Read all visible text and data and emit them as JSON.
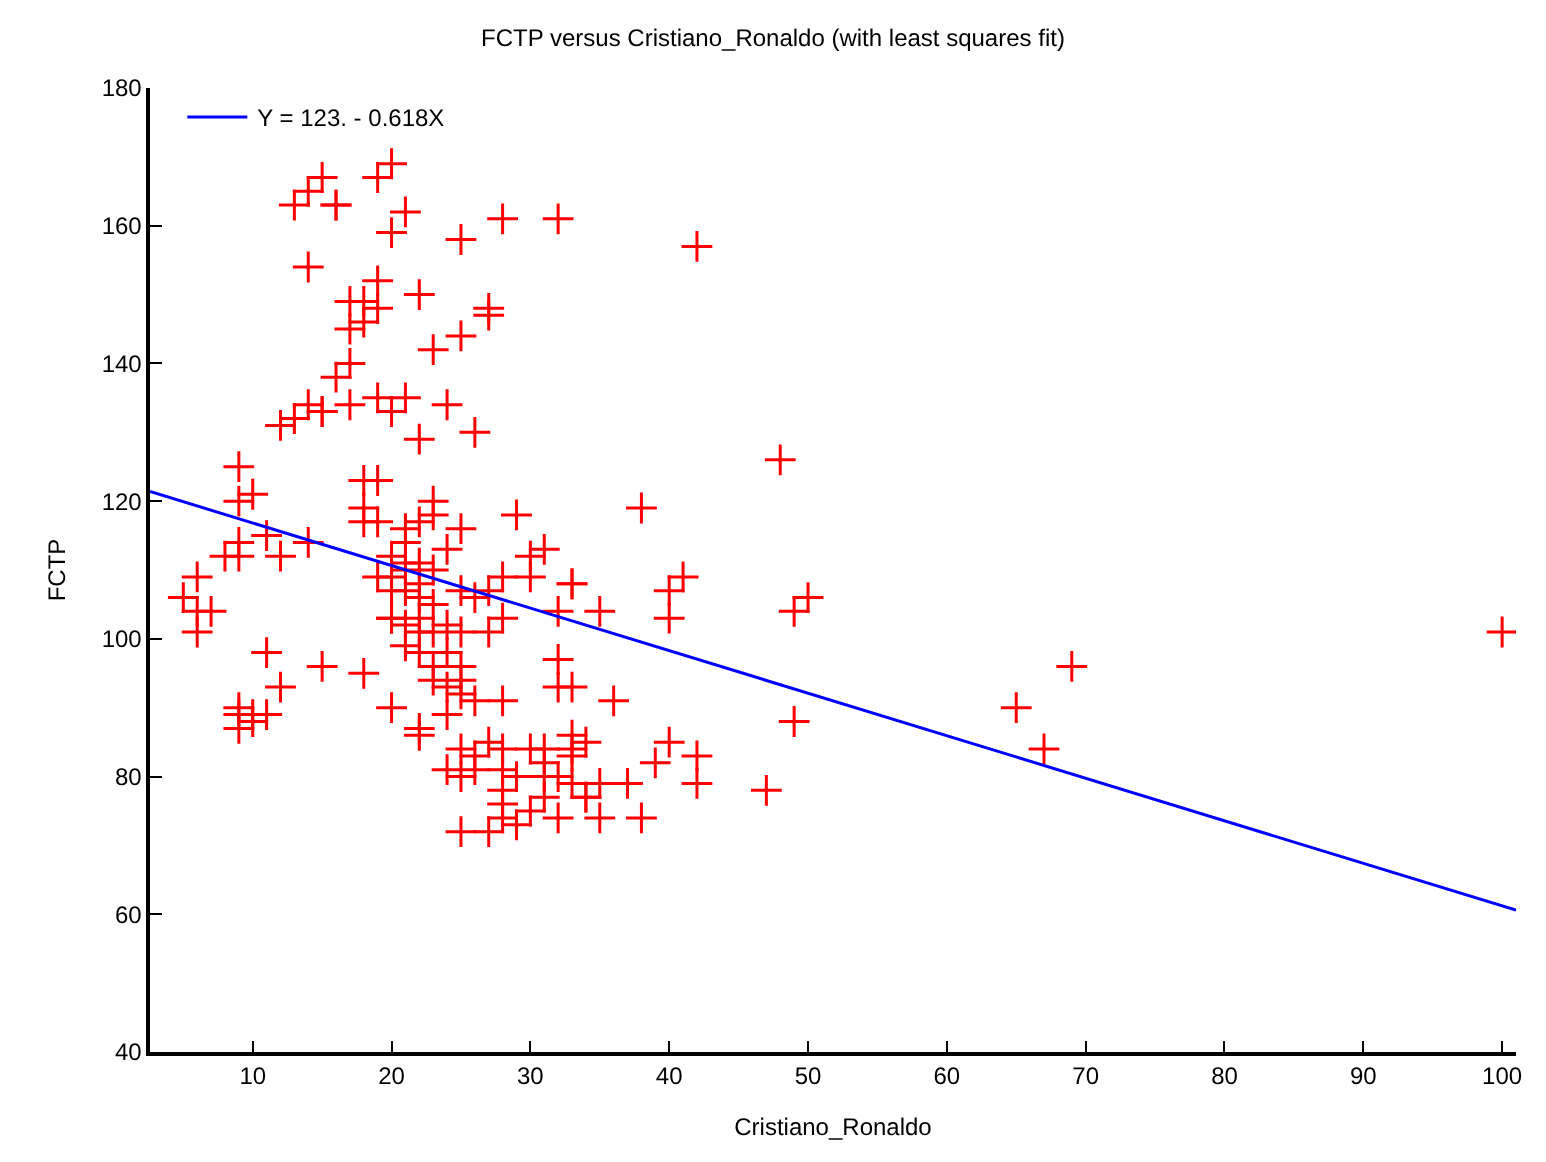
{
  "chart_data": {
    "type": "scatter",
    "title": "FCTP versus Cristiano_Ronaldo (with least squares fit)",
    "xlabel": "Cristiano_Ronaldo",
    "ylabel": "FCTP",
    "xlim": [
      2.6,
      101
    ],
    "ylim": [
      40,
      180
    ],
    "xticks": [
      10,
      20,
      30,
      40,
      50,
      60,
      70,
      80,
      90,
      100
    ],
    "yticks": [
      40,
      60,
      80,
      100,
      120,
      140,
      160,
      180
    ],
    "legend": "top left",
    "series": [
      {
        "marker": "cross",
        "color": "#ff0000",
        "x": [
          20,
          19,
          15,
          14,
          13,
          16,
          16,
          21,
          28,
          32,
          42,
          25,
          20,
          14,
          19,
          22,
          18,
          17,
          19,
          18,
          17,
          27,
          27,
          25,
          23,
          16,
          17,
          19,
          21,
          14,
          15,
          15,
          17,
          20,
          24,
          12,
          13,
          26,
          22,
          9,
          10,
          9,
          18,
          19,
          38,
          18,
          18,
          19,
          22,
          23,
          23,
          21,
          21,
          25,
          29,
          11,
          12,
          8,
          9,
          9,
          7,
          6,
          5,
          6,
          6,
          14,
          20,
          21,
          22,
          21,
          19,
          20,
          23,
          24,
          22,
          20,
          21,
          22,
          25,
          26,
          27,
          28,
          30,
          31,
          30,
          33,
          33,
          35,
          32,
          28,
          23,
          20,
          20,
          22,
          21,
          22,
          23,
          24,
          25,
          27,
          21,
          22,
          24,
          23,
          25,
          25,
          23,
          25,
          24,
          26,
          20,
          22,
          22,
          24,
          28,
          32,
          33,
          32,
          36,
          11,
          15,
          18,
          9,
          9,
          9,
          10,
          10,
          11,
          12,
          27,
          25,
          26,
          28,
          30,
          31,
          28,
          26,
          25,
          24,
          29,
          31,
          32,
          33,
          33,
          34,
          33,
          31,
          33,
          35,
          37,
          39,
          40,
          42,
          42,
          38,
          34,
          34,
          30,
          31,
          28,
          28,
          29,
          28,
          27,
          25,
          32,
          35,
          47,
          48,
          50,
          49,
          49,
          41,
          40,
          40,
          69,
          65,
          67,
          100
        ],
        "values": [
          169,
          167,
          167,
          165,
          163,
          163,
          163,
          162,
          161,
          161,
          157,
          158,
          159,
          154,
          152,
          150,
          149,
          149,
          148,
          146,
          145,
          148,
          147,
          144,
          142,
          138,
          140,
          135,
          135,
          134,
          133,
          133,
          134,
          133,
          134,
          131,
          132,
          130,
          129,
          125,
          121,
          120,
          123,
          123,
          119,
          119,
          117,
          117,
          117,
          120,
          118,
          116,
          114,
          116,
          118,
          115,
          112,
          112,
          112,
          114,
          104,
          109,
          106,
          104,
          101,
          114,
          112,
          111,
          111,
          110,
          109,
          109,
          110,
          113,
          108,
          107,
          107,
          106,
          107,
          106,
          107,
          109,
          112,
          113,
          109,
          108,
          108,
          104,
          104,
          103,
          105,
          103,
          103,
          103,
          102,
          101,
          101,
          102,
          101,
          101,
          99,
          98,
          98,
          96,
          96,
          94,
          94,
          92,
          93,
          91,
          90,
          87,
          86,
          89,
          91,
          93,
          93,
          97,
          91,
          98,
          96,
          95,
          90,
          89,
          87,
          88,
          89,
          89,
          93,
          85,
          84,
          83,
          84,
          84,
          84,
          81,
          81,
          80,
          81,
          80,
          82,
          80,
          86,
          84,
          85,
          83,
          80,
          79,
          79,
          79,
          82,
          85,
          83,
          79,
          74,
          77,
          77,
          75,
          77,
          78,
          76,
          73,
          74,
          72,
          72,
          74,
          74,
          78,
          126,
          106,
          104,
          88,
          109,
          107,
          103,
          96,
          90,
          84,
          101
        ]
      },
      {
        "type": "line",
        "name": "Y = 123. - 0.618X",
        "color": "#0000ff",
        "line_style": "solid",
        "marker": "none",
        "x": [
          2.6,
          101
        ],
        "values": [
          121.4,
          60.6
        ]
      }
    ]
  }
}
